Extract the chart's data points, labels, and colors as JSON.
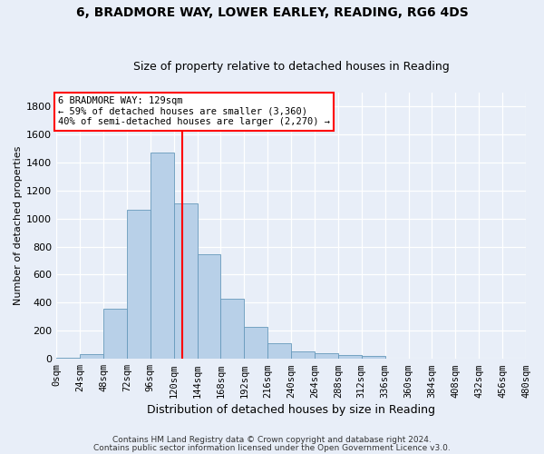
{
  "title_line1": "6, BRADMORE WAY, LOWER EARLEY, READING, RG6 4DS",
  "title_line2": "Size of property relative to detached houses in Reading",
  "xlabel": "Distribution of detached houses by size in Reading",
  "ylabel": "Number of detached properties",
  "bin_labels": [
    "0sqm",
    "24sqm",
    "48sqm",
    "72sqm",
    "96sqm",
    "120sqm",
    "144sqm",
    "168sqm",
    "192sqm",
    "216sqm",
    "240sqm",
    "264sqm",
    "288sqm",
    "312sqm",
    "336sqm",
    "360sqm",
    "384sqm",
    "408sqm",
    "432sqm",
    "456sqm",
    "480sqm"
  ],
  "bar_values": [
    10,
    35,
    355,
    1060,
    1470,
    1110,
    745,
    430,
    225,
    110,
    50,
    40,
    30,
    20,
    0,
    0,
    0,
    0,
    0,
    0,
    0
  ],
  "bar_color": "#b8d0e8",
  "bar_edge_color": "#6699bb",
  "vline_x": 129,
  "vline_color": "red",
  "annotation_text": "6 BRADMORE WAY: 129sqm\n← 59% of detached houses are smaller (3,360)\n40% of semi-detached houses are larger (2,270) →",
  "annotation_box_color": "white",
  "annotation_box_edge": "red",
  "ylim": [
    0,
    1900
  ],
  "xlim_min": 0,
  "xlim_max": 480,
  "bin_width": 24,
  "footnote1": "Contains HM Land Registry data © Crown copyright and database right 2024.",
  "footnote2": "Contains public sector information licensed under the Open Government Licence v3.0.",
  "bg_color": "#e8eef8",
  "title_fontsize": 10,
  "subtitle_fontsize": 9,
  "xlabel_fontsize": 9,
  "ylabel_fontsize": 8,
  "tick_fontsize": 7.5,
  "annot_fontsize": 7.5,
  "footnote_fontsize": 6.5
}
